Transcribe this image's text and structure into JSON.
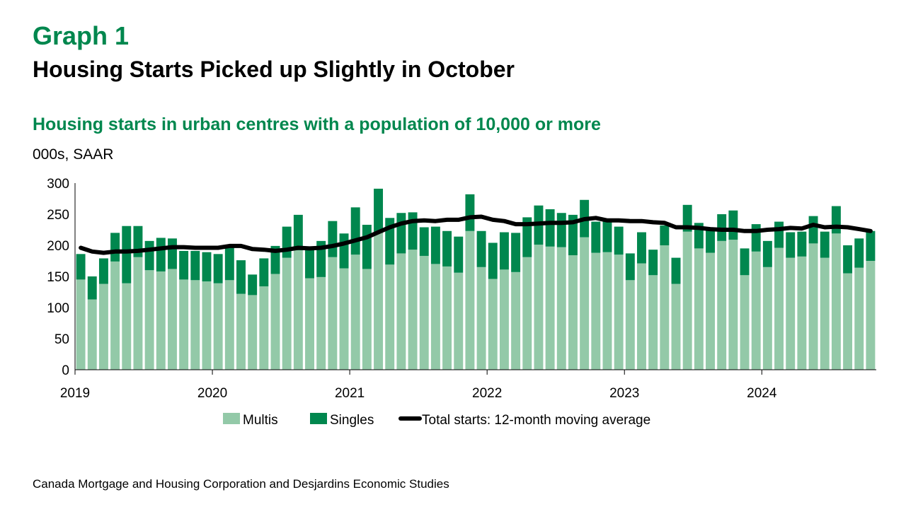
{
  "header": {
    "graph_label": "Graph 1",
    "title": "Housing Starts Picked up Slightly in October",
    "subtitle": "Housing starts in urban centres with a population of 10,000 or more",
    "unit": "000s, SAAR"
  },
  "footer": {
    "source": "Canada Mortgage and Housing Corporation and Desjardins Economic Studies"
  },
  "colors": {
    "multis": "#93c9a8",
    "singles": "#00874e",
    "average": "#000000",
    "heading": "#00874e"
  },
  "chart_data": {
    "type": "bar",
    "stacked": true,
    "ylim": [
      0,
      300
    ],
    "y_ticks": [
      0,
      50,
      100,
      150,
      200,
      250,
      300
    ],
    "x_tick_labels": [
      "2019",
      "2020",
      "2021",
      "2022",
      "2023",
      "2024"
    ],
    "x": [
      "2019-01",
      "2019-02",
      "2019-03",
      "2019-04",
      "2019-05",
      "2019-06",
      "2019-07",
      "2019-08",
      "2019-09",
      "2019-10",
      "2019-11",
      "2019-12",
      "2020-01",
      "2020-02",
      "2020-03",
      "2020-04",
      "2020-05",
      "2020-06",
      "2020-07",
      "2020-08",
      "2020-09",
      "2020-10",
      "2020-11",
      "2020-12",
      "2021-01",
      "2021-02",
      "2021-03",
      "2021-04",
      "2021-05",
      "2021-06",
      "2021-07",
      "2021-08",
      "2021-09",
      "2021-10",
      "2021-11",
      "2021-12",
      "2022-01",
      "2022-02",
      "2022-03",
      "2022-04",
      "2022-05",
      "2022-06",
      "2022-07",
      "2022-08",
      "2022-09",
      "2022-10",
      "2022-11",
      "2022-12",
      "2023-01",
      "2023-02",
      "2023-03",
      "2023-04",
      "2023-05",
      "2023-06",
      "2023-07",
      "2023-08",
      "2023-09",
      "2023-10",
      "2023-11",
      "2023-12",
      "2024-01",
      "2024-02",
      "2024-03",
      "2024-04",
      "2024-05",
      "2024-06",
      "2024-07",
      "2024-08",
      "2024-09",
      "2024-10"
    ],
    "series": [
      {
        "name": "Multis",
        "kind": "bar",
        "values": [
          145,
          113,
          138,
          174,
          139,
          181,
          160,
          158,
          162,
          145,
          144,
          142,
          139,
          144,
          122,
          120,
          134,
          154,
          180,
          192,
          147,
          149,
          181,
          163,
          185,
          162,
          220,
          169,
          187,
          193,
          183,
          170,
          166,
          156,
          223,
          165,
          146,
          161,
          157,
          181,
          201,
          198,
          197,
          184,
          213,
          188,
          189,
          185,
          144,
          171,
          152,
          200,
          138,
          222,
          195,
          188,
          207,
          209,
          152,
          190,
          165,
          196,
          180,
          182,
          203,
          180,
          219,
          155,
          164,
          175
        ]
      },
      {
        "name": "Singles",
        "kind": "bar",
        "values": [
          41,
          37,
          41,
          46,
          92,
          50,
          47,
          54,
          49,
          46,
          47,
          47,
          47,
          55,
          54,
          33,
          45,
          45,
          50,
          57,
          50,
          58,
          58,
          56,
          76,
          71,
          71,
          75,
          65,
          60,
          46,
          60,
          57,
          58,
          59,
          58,
          58,
          60,
          63,
          64,
          63,
          60,
          55,
          65,
          60,
          50,
          50,
          45,
          43,
          50,
          41,
          32,
          42,
          43,
          41,
          38,
          43,
          47,
          43,
          44,
          42,
          42,
          41,
          40,
          44,
          42,
          44,
          45,
          47,
          48
        ]
      },
      {
        "name": "Total starts: 12-month moving average",
        "kind": "line",
        "values": [
          196,
          190,
          188,
          190,
          190,
          191,
          193,
          195,
          197,
          197,
          196,
          196,
          196,
          199,
          199,
          194,
          193,
          191,
          193,
          196,
          195,
          196,
          199,
          203,
          208,
          213,
          221,
          229,
          235,
          239,
          240,
          239,
          241,
          241,
          245,
          246,
          241,
          239,
          234,
          234,
          235,
          236,
          236,
          237,
          242,
          244,
          240,
          240,
          239,
          239,
          237,
          236,
          229,
          229,
          228,
          226,
          225,
          225,
          223,
          223,
          225,
          226,
          228,
          227,
          233,
          229,
          230,
          229,
          226,
          223
        ]
      }
    ],
    "legend_position": "bottom"
  }
}
